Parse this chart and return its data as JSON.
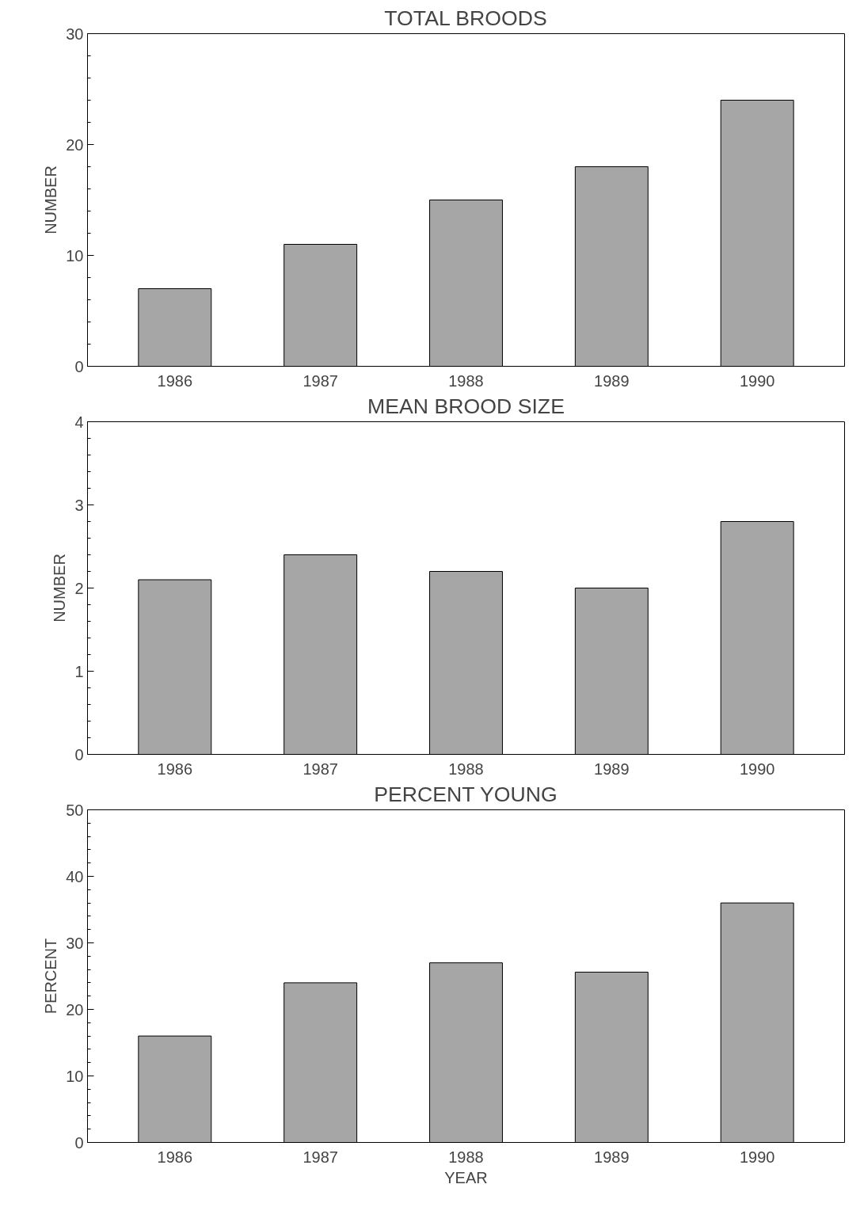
{
  "chart_data": [
    {
      "type": "bar",
      "title": "TOTAL BROODS",
      "ylabel": "NUMBER",
      "categories": [
        "1986",
        "1987",
        "1988",
        "1989",
        "1990"
      ],
      "values": [
        7,
        11,
        15,
        18,
        24
      ],
      "color": "#a6a6a6",
      "ylim": [
        0,
        30
      ],
      "yticks": [
        0,
        10,
        20,
        30
      ]
    },
    {
      "type": "bar",
      "title": "MEAN BROOD SIZE",
      "ylabel": "NUMBER",
      "categories": [
        "1986",
        "1987",
        "1988",
        "1989",
        "1990"
      ],
      "values": [
        2.1,
        2.4,
        2.2,
        2.0,
        2.8
      ],
      "color": "#a6a6a6",
      "ylim": [
        0,
        4
      ],
      "yticks": [
        0,
        1,
        2,
        3,
        4
      ]
    },
    {
      "type": "bar",
      "title": "PERCENT YOUNG",
      "ylabel": "PERCENT",
      "xlabel": "YEAR",
      "categories": [
        "1986",
        "1987",
        "1988",
        "1989",
        "1990"
      ],
      "values": [
        16,
        24,
        27,
        25.6,
        36
      ],
      "color": "#a6a6a6",
      "ylim": [
        0,
        50
      ],
      "yticks": [
        0,
        10,
        20,
        30,
        40,
        50
      ]
    }
  ]
}
